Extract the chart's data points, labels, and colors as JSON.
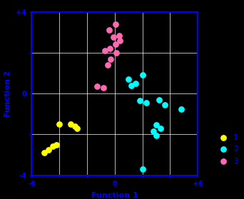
{
  "title": "",
  "xlabel": "Function 1",
  "ylabel": "Function 2",
  "xlim": [
    -6,
    6
  ],
  "ylim": [
    -4,
    4
  ],
  "bg_color": "#000000",
  "grid_color": "#ffffff",
  "axis_color": "#0000ff",
  "label_color": "#0000ff",
  "tick_color": "#0000ff",
  "xticks": [
    -6,
    -4,
    -2,
    0,
    2,
    4,
    6
  ],
  "yticks": [
    -4,
    -2,
    0,
    2,
    4
  ],
  "xtick_labels": [
    "-6",
    "",
    "",
    "0",
    "",
    "",
    "+6"
  ],
  "ytick_labels": [
    "-4",
    "",
    "0",
    "",
    "+4"
  ],
  "groups": {
    "1": {
      "color": "#ffff00",
      "x": [
        -5.1,
        -4.8,
        -4.5,
        -4.2,
        -3.2,
        -2.9,
        -2.7,
        -4.0
      ],
      "y": [
        -2.9,
        -2.75,
        -2.6,
        -2.5,
        -1.5,
        -1.6,
        -1.7,
        -1.5
      ]
    },
    "2": {
      "color": "#00ffff",
      "x": [
        1.0,
        1.5,
        2.0,
        1.2,
        1.8,
        2.3,
        3.2,
        3.6,
        4.8,
        3.0,
        3.3,
        2.8,
        3.0,
        2.0
      ],
      "y": [
        0.7,
        0.5,
        0.9,
        0.4,
        -0.35,
        -0.45,
        -0.3,
        -0.55,
        -0.75,
        -1.55,
        -1.7,
        -1.85,
        -2.05,
        -3.7
      ]
    },
    "3": {
      "color": "#ff69b4",
      "x": [
        -1.3,
        -0.8,
        -0.5,
        -0.3,
        0.1,
        -0.7,
        -0.35,
        0.05,
        0.35,
        -0.1,
        0.3,
        -0.4,
        0.05
      ],
      "y": [
        0.35,
        0.3,
        1.4,
        1.7,
        2.0,
        2.1,
        2.2,
        2.4,
        2.6,
        2.75,
        2.85,
        3.1,
        3.4
      ]
    }
  },
  "legend_labels": [
    "1",
    "2",
    "3"
  ],
  "legend_colors": [
    "#ffff00",
    "#00ffff",
    "#ff69b4"
  ],
  "marker_size": 28,
  "figsize": [
    3.42,
    2.79
  ],
  "dpi": 100
}
